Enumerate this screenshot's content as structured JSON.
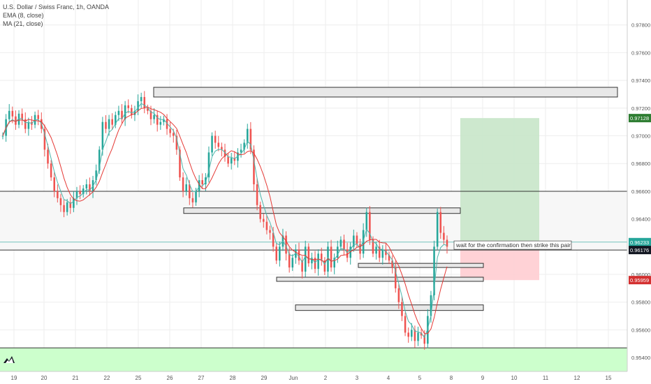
{
  "header": {
    "symbol_line": "U.S. Dollar / Swiss Franc, 1h, OANDA",
    "indicators": [
      "EMA (8, close)",
      "MA (21, close)"
    ]
  },
  "colors": {
    "up": "#26a69a",
    "down": "#ef5350",
    "ema": "#4db6ac",
    "ma": "#e53935",
    "grid": "#eeeeee",
    "target_zone": "#c8e6c9",
    "stop_zone": "#ffcdd2",
    "support_zone": "#ccffcc",
    "range_zone": "#f7f7f7",
    "label_green": "#2e7d32",
    "label_red": "#d32f2f",
    "label_dark": "#131722",
    "label_teal": "#26a69a"
  },
  "chart_data": {
    "type": "candlestick",
    "instrument": "U.S. Dollar / Swiss Franc",
    "timeframe": "1h",
    "source": "OANDA",
    "ylim": [
      0.953,
      0.9798
    ],
    "y_ticks": [
      0.954,
      0.956,
      0.958,
      0.96,
      0.962,
      0.964,
      0.966,
      0.968,
      0.97,
      0.972,
      0.974,
      0.976,
      0.978
    ],
    "y_tick_labels": [
      "0.95400",
      "0.95600",
      "0.95800",
      "0.96000",
      "0.96200",
      "0.96400",
      "0.96600",
      "0.96800",
      "0.97000",
      "0.97200",
      "0.97400",
      "0.97600",
      "0.97800"
    ],
    "x_labels": [
      "19",
      "20",
      "21",
      "22",
      "25",
      "26",
      "27",
      "28",
      "29",
      "Jun",
      "2",
      "3",
      "4",
      "5",
      "8",
      "9",
      "10",
      "11",
      "12",
      "15"
    ],
    "price_labels": [
      {
        "value": 0.97128,
        "text": "0.97128",
        "style": "green"
      },
      {
        "value": 0.96233,
        "text": "0.96233",
        "style": "teal"
      },
      {
        "value": 0.96176,
        "text": "0.96176",
        "style": "dark"
      },
      {
        "value": 0.95959,
        "text": "0.95959",
        "style": "red"
      }
    ],
    "horizontal_lines": [
      0.966,
      0.96176,
      0.9547
    ],
    "zones": [
      {
        "name": "support",
        "from": 0.953,
        "to": 0.9547
      },
      {
        "name": "range",
        "from": 0.96176,
        "to": 0.966
      }
    ],
    "position": {
      "entry": 0.96176,
      "target": 0.97128,
      "stop": 0.95959,
      "x_start_label": "8",
      "x_end_label": "10/11"
    },
    "annotation": "wait for the confirmation then strike this pair",
    "series": [
      {
        "name": "EMA (8, close)"
      },
      {
        "name": "MA (21, close)"
      }
    ],
    "candles_close": [
      0.97,
      0.9712,
      0.9718,
      0.9714,
      0.9708,
      0.9716,
      0.9712,
      0.9705,
      0.971,
      0.9708,
      0.9715,
      0.9712,
      0.9705,
      0.969,
      0.968,
      0.967,
      0.966,
      0.9655,
      0.965,
      0.9645,
      0.9652,
      0.9648,
      0.9655,
      0.966,
      0.9658,
      0.9662,
      0.9665,
      0.966,
      0.9668,
      0.9675,
      0.969,
      0.971,
      0.9705,
      0.9712,
      0.9708,
      0.9715,
      0.9718,
      0.9712,
      0.9722,
      0.972,
      0.9715,
      0.9718,
      0.9725,
      0.9728,
      0.972,
      0.9718,
      0.9712,
      0.9715,
      0.9708,
      0.971,
      0.9712,
      0.9705,
      0.9702,
      0.97,
      0.969,
      0.967,
      0.966,
      0.9665,
      0.9655,
      0.9652,
      0.966,
      0.9668,
      0.9665,
      0.967,
      0.9688,
      0.97,
      0.9695,
      0.9692,
      0.969,
      0.9685,
      0.968,
      0.9684,
      0.9682,
      0.9688,
      0.969,
      0.9695,
      0.9705,
      0.969,
      0.9665,
      0.965,
      0.964,
      0.9638,
      0.9632,
      0.963,
      0.962,
      0.961,
      0.962,
      0.9628,
      0.9615,
      0.9605,
      0.9612,
      0.9618,
      0.961,
      0.9602,
      0.962,
      0.9608,
      0.9612,
      0.9604,
      0.9615,
      0.961,
      0.9602,
      0.962,
      0.9605,
      0.9612,
      0.962,
      0.9625,
      0.9618,
      0.9612,
      0.962,
      0.9628,
      0.9622,
      0.9615,
      0.9632,
      0.9645,
      0.9625,
      0.9615,
      0.962,
      0.9612,
      0.9618,
      0.9614,
      0.961,
      0.9605,
      0.959,
      0.958,
      0.957,
      0.9558,
      0.9555,
      0.956,
      0.9552,
      0.9558,
      0.9556,
      0.955,
      0.957,
      0.9585,
      0.962,
      0.9645,
      0.963,
      0.9625,
      0.962
    ]
  },
  "logo": "tradingview-logo-icon"
}
